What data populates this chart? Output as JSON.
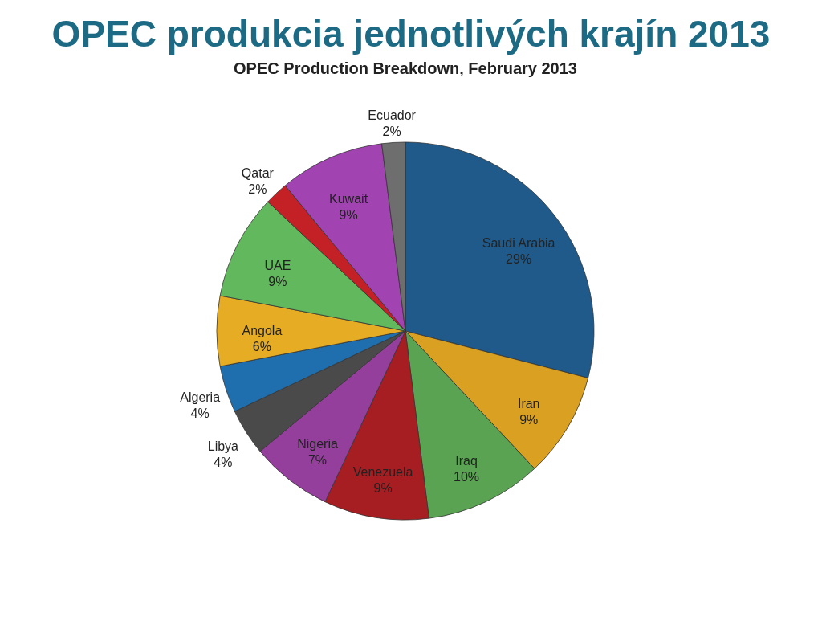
{
  "chart_data": {
    "type": "pie",
    "title": "OPEC produkcia jednotlivých krajín 2013",
    "subtitle": "OPEC Production Breakdown, February 2013",
    "categories": [
      "Saudi Arabia",
      "Iran",
      "Iraq",
      "Venezuela",
      "Nigeria",
      "Libya",
      "Algeria",
      "Angola",
      "UAE",
      "Qatar",
      "Kuwait",
      "Ecuador"
    ],
    "values": [
      29,
      9,
      10,
      9,
      7,
      4,
      4,
      6,
      9,
      2,
      9,
      2
    ],
    "value_labels": [
      "29%",
      "9%",
      "10%",
      "9%",
      "7%",
      "4%",
      "4%",
      "6%",
      "9%",
      "2%",
      "9%",
      "2%"
    ],
    "colors": [
      "#1f5a8a",
      "#d9a021",
      "#5aa352",
      "#a61e22",
      "#943f9c",
      "#4a4a4a",
      "#1f6fae",
      "#e6ad24",
      "#62b95d",
      "#c42126",
      "#a144b2",
      "#6e6e6e"
    ],
    "legend": false
  }
}
